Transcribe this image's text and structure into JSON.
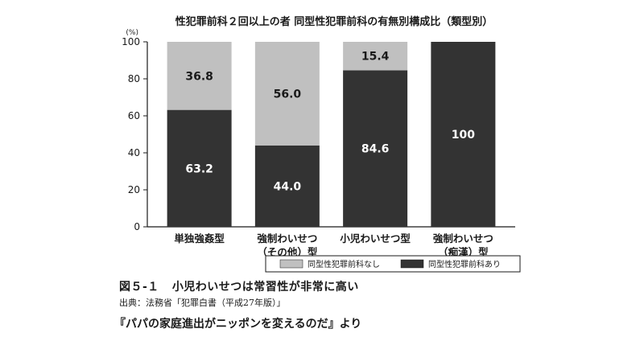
{
  "chart_data": {
    "type": "bar",
    "stacked": true,
    "title": "性犯罪前科２回以上の者 同型性犯罪前科の有無別構成比（類型別）",
    "ylabel": "(%)",
    "ylim": [
      0,
      100
    ],
    "yticks": [
      "0",
      "20",
      "40",
      "60",
      "80",
      "100"
    ],
    "categories": [
      [
        "単独強姦型"
      ],
      [
        "強制わいせつ",
        "（その他）型"
      ],
      [
        "小児わいせつ型"
      ],
      [
        "強制わいせつ",
        "（痴漢）型"
      ]
    ],
    "series": [
      {
        "name": "同型性犯罪前科あり",
        "color": "#333333",
        "label_color": "#ffffff",
        "values": [
          63.2,
          44.0,
          84.6,
          100
        ],
        "labels": [
          "63.2",
          "44.0",
          "84.6",
          "100"
        ]
      },
      {
        "name": "同型性犯罪前科なし",
        "color": "#c0c0c0",
        "label_color": "#1a1a1a",
        "values": [
          36.8,
          56.0,
          15.4,
          0
        ],
        "labels": [
          "36.8",
          "56.0",
          "15.4",
          ""
        ]
      }
    ],
    "legend": [
      "同型性犯罪前科なし",
      "同型性犯罪前科あり"
    ],
    "legend_position": "bottom",
    "grid": false
  },
  "caption": {
    "figure_number": "図５-１",
    "text": "小児わいせつは常習性が非常に高い"
  },
  "source": "出典：法務省「犯罪白書（平成27年版）」",
  "quote": "『パパの家庭進出がニッポンを変えるのだ』より"
}
